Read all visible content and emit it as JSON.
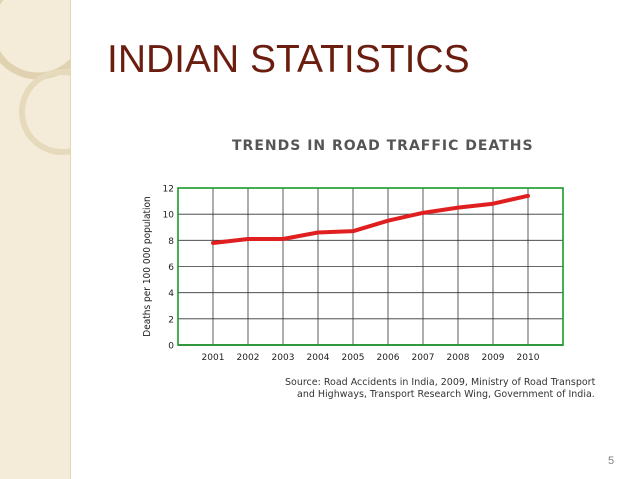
{
  "slide": {
    "title": "INDIAN STATISTICS",
    "page_number": "5"
  },
  "source": {
    "line1": "Source: Road Accidents in India, 2009, Ministry of Road Transport",
    "line2": "and Highways, Transport Research Wing, Government of India."
  },
  "colors": {
    "title": "#6b1e10",
    "line": "#e02020",
    "grid": "#1a9a2a",
    "sidebar": "#f4ecd8"
  },
  "chart_data": {
    "type": "line",
    "title": "TRENDS IN ROAD TRAFFIC DEATHS",
    "xlabel": "",
    "ylabel": "Deaths per 100 000 population",
    "x": [
      "2001",
      "2002",
      "2003",
      "2004",
      "2005",
      "2006",
      "2007",
      "2008",
      "2009",
      "2010"
    ],
    "ylim": [
      0,
      12
    ],
    "yticks": [
      0,
      2,
      4,
      6,
      8,
      10,
      12
    ],
    "grid": true,
    "series": [
      {
        "values": [
          7.8,
          8.1,
          8.1,
          8.6,
          8.7,
          9.5,
          10.1,
          10.5,
          10.8,
          11.4
        ]
      }
    ]
  }
}
